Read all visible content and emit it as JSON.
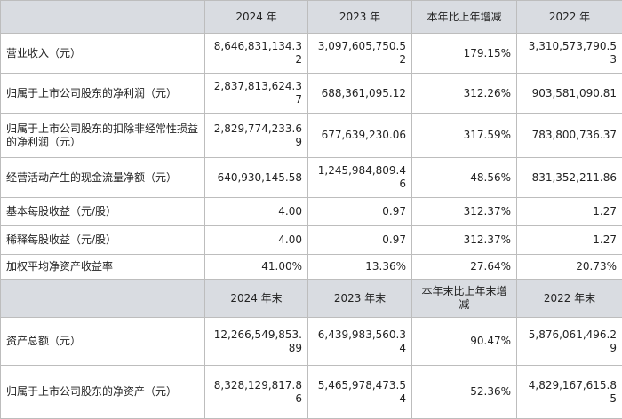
{
  "section1": {
    "headers": [
      "",
      "2024 年",
      "2023 年",
      "本年比上年增减",
      "2022 年"
    ],
    "rows": [
      [
        "营业收入（元）",
        "8,646,831,134.32",
        "3,097,605,750.52",
        "179.15%",
        "3,310,573,790.53"
      ],
      [
        "归属于上市公司股东的净利润（元）",
        "2,837,813,624.37",
        "688,361,095.12",
        "312.26%",
        "903,581,090.81"
      ],
      [
        "归属于上市公司股东的扣除非经常性损益的净利润（元）",
        "2,829,774,233.69",
        "677,639,230.06",
        "317.59%",
        "783,800,736.37"
      ],
      [
        "经营活动产生的现金流量净额（元）",
        "640,930,145.58",
        "1,245,984,809.46",
        "-48.56%",
        "831,352,211.86"
      ],
      [
        "基本每股收益（元/股）",
        "4.00",
        "0.97",
        "312.37%",
        "1.27"
      ],
      [
        "稀释每股收益（元/股）",
        "4.00",
        "0.97",
        "312.37%",
        "1.27"
      ],
      [
        "加权平均净资产收益率",
        "41.00%",
        "13.36%",
        "27.64%",
        "20.73%"
      ]
    ]
  },
  "section2": {
    "headers": [
      "",
      "2024 年末",
      "2023 年末",
      "本年末比上年末增减",
      "2022 年末"
    ],
    "rows": [
      [
        "资产总额（元）",
        "12,266,549,853.89",
        "6,439,983,560.34",
        "90.47%",
        "5,876,061,496.29"
      ],
      [
        "归属于上市公司股东的净资产（元）",
        "8,328,129,817.86",
        "5,465,978,473.54",
        "52.36%",
        "4,829,167,615.85"
      ]
    ]
  }
}
